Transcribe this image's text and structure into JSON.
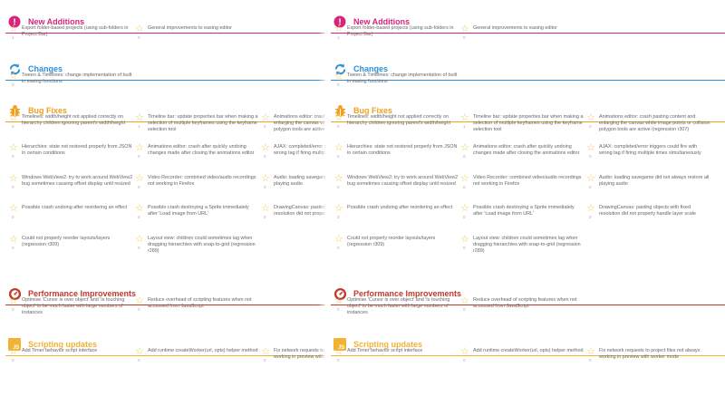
{
  "colors": {
    "new_additions": "#d6247c",
    "changes": "#2f8fd6",
    "bug_fixes": "#f0a020",
    "performance": "#c0392b",
    "scripting": "#f2b233",
    "star": "#f2c94c"
  },
  "sections": [
    {
      "id": "new-additions",
      "title": "New Additions",
      "icon": "exclamation-icon",
      "color_key": "new_additions",
      "items": [
        {
          "text": "Export folder-based projects (using sub-folders in Project Bar)",
          "count": "1"
        },
        {
          "text": "General improvements to easing editor",
          "count": "0"
        }
      ]
    },
    {
      "id": "changes",
      "title": "Changes",
      "icon": "refresh-icon",
      "color_key": "changes",
      "items": [
        {
          "text": "Tween & Timelines: change implementation of built in easing functions",
          "count": "0"
        }
      ]
    },
    {
      "id": "bug-fixes",
      "title": "Bug Fixes",
      "icon": "bug-icon",
      "color_key": "bug_fixes",
      "items": [
        {
          "text": "Timelines: width/height not applied correctly on hierarchy children ignoring parent's width/height",
          "count": "0"
        },
        {
          "text": "Timeline bar: update properties bar when making a selection of multiple keyframes using the keyframe selection tool",
          "count": "1"
        },
        {
          "text": "Animations editor: crash pasting content and enlarging the canvas while image points or collision polygon tools are active (regression r307)",
          "count": "0"
        },
        {
          "text": "Hierarchies: state not restored properly from JSON in certain conditions",
          "count": "0"
        },
        {
          "text": "Animations editor: crash after quickly undoing changes made after closing the animations editor",
          "count": "0"
        },
        {
          "text": "AJAX: completed/error triggers could fire with wrong tag if firing multiple times simultaneously",
          "count": "0"
        },
        {
          "text": "Windows WebView2: try to work around WebView2 bug sometimes causing offset display until resized",
          "count": "0"
        },
        {
          "text": "Video Recorder: combined video/audio recordings not working in Firefox",
          "count": "0"
        },
        {
          "text": "Audio: loading savegame did not always restore all playing audio",
          "count": "0"
        },
        {
          "text": "Possible crash undoing after reordering an effect",
          "count": "0"
        },
        {
          "text": "Possible crash destroying a Sprite immediately after 'Load image from URL'",
          "count": "0"
        },
        {
          "text": "DrawingCanvas: pasting objects with fixed resolution did not properly handle layer scale",
          "count": "0"
        },
        {
          "text": "Could not properly reorder layouts/layers (regression r309)",
          "count": "0"
        },
        {
          "text": "Layout view: children could sometimes lag when dragging hierarchies with snap-to-grid (regression r289)",
          "count": "0"
        }
      ]
    },
    {
      "id": "performance",
      "title": "Performance Improvements",
      "icon": "gauge-icon",
      "color_key": "performance",
      "items": [
        {
          "text": "Optimise 'Cursor is over object' and 'Is touching object' to be much faster with large numbers of instances",
          "count": "0"
        },
        {
          "text": "Reduce overhead of scripting features when not accessed from JavaScript",
          "count": "0"
        }
      ]
    },
    {
      "id": "scripting",
      "title": "Scripting updates",
      "icon": "js-icon",
      "color_key": "scripting",
      "items": [
        {
          "text": "Add Timer behavior script interface",
          "count": "0"
        },
        {
          "text": "Add runtime createWorker(url, opts) helper method",
          "count": "0"
        },
        {
          "text": "Fix network requests to project files not always working in preview with worker mode",
          "count": "0"
        }
      ]
    }
  ],
  "icon_labels": {
    "exclamation": "!",
    "js": "JS"
  }
}
